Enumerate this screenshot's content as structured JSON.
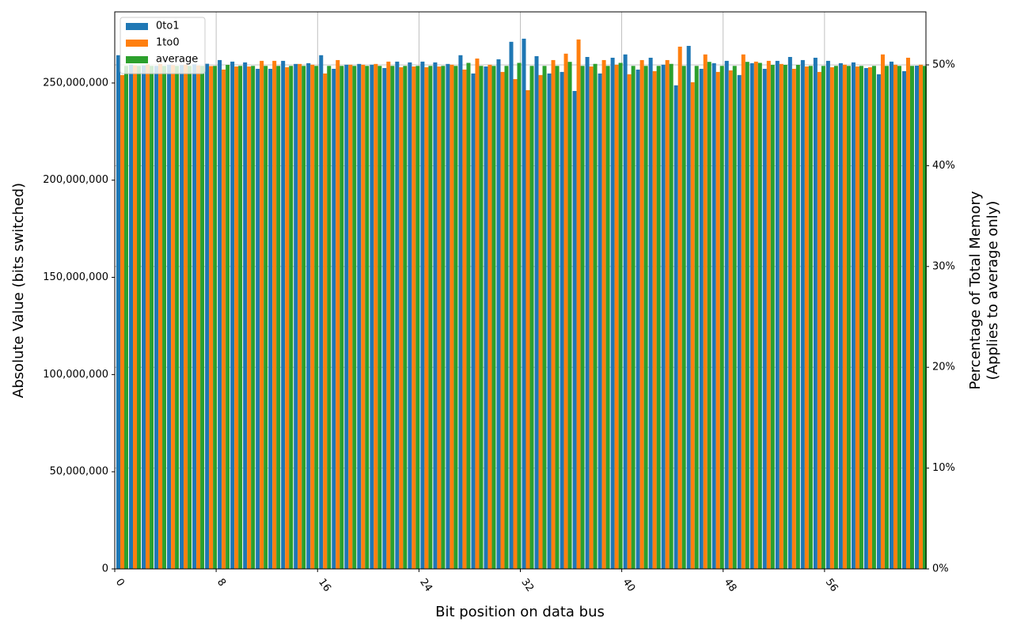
{
  "chart_data": {
    "type": "bar",
    "x_label": "Bit position on data bus",
    "y_label": "Absolute Value (bits switched)",
    "y2_label": [
      "Percentage of Total Memory",
      "(Applies to average only)"
    ],
    "categories": [
      "0",
      null,
      null,
      null,
      null,
      null,
      null,
      null,
      "8",
      null,
      null,
      null,
      null,
      null,
      null,
      null,
      "16",
      null,
      null,
      null,
      null,
      null,
      null,
      null,
      "24",
      null,
      null,
      null,
      null,
      null,
      null,
      null,
      "32",
      null,
      null,
      null,
      null,
      null,
      null,
      null,
      "40",
      null,
      null,
      null,
      null,
      null,
      null,
      null,
      "48",
      null,
      null,
      null,
      null,
      null,
      null,
      null,
      "56",
      null,
      null,
      null,
      null,
      null,
      null,
      null
    ],
    "series": [
      {
        "name": "0to1",
        "color": "#1f77b4",
        "values": [
          264300000,
          259500000,
          259000000,
          258800000,
          259400000,
          259200000,
          259600000,
          259900000,
          261800000,
          261000000,
          260600000,
          257300000,
          257300000,
          261400000,
          259800000,
          260200000,
          264300000,
          257300000,
          259400000,
          259800000,
          259400000,
          257700000,
          261000000,
          260600000,
          261000000,
          260600000,
          259800000,
          264300000,
          254900000,
          258500000,
          262200000,
          271200000,
          272800000,
          263800000,
          254900000,
          255700000,
          245900000,
          263400000,
          254900000,
          263000000,
          264700000,
          256900000,
          263000000,
          259400000,
          248800000,
          269100000,
          257300000,
          260200000,
          261400000,
          254100000,
          260200000,
          257300000,
          261400000,
          263400000,
          261800000,
          263000000,
          261400000,
          260200000,
          260600000,
          257700000,
          254500000,
          261000000,
          256100000,
          258900000
        ]
      },
      {
        "name": "1to0",
        "color": "#ff7f0e",
        "values": [
          254100000,
          259000000,
          259600000,
          259800000,
          259200000,
          259400000,
          259000000,
          258700000,
          256900000,
          258500000,
          258500000,
          261400000,
          261400000,
          258100000,
          259800000,
          259400000,
          254900000,
          261800000,
          259400000,
          259400000,
          259800000,
          261000000,
          258100000,
          258500000,
          258100000,
          258500000,
          259400000,
          256900000,
          262600000,
          259400000,
          255700000,
          252000000,
          246300000,
          254100000,
          261800000,
          265100000,
          272400000,
          258500000,
          261800000,
          259400000,
          254500000,
          261800000,
          256100000,
          261800000,
          268700000,
          250400000,
          264700000,
          255700000,
          256500000,
          264700000,
          261000000,
          261400000,
          259800000,
          257300000,
          258500000,
          255700000,
          258100000,
          259400000,
          258500000,
          258100000,
          264700000,
          259400000,
          263000000,
          259400000
        ]
      },
      {
        "name": "average",
        "color": "#2ca02c",
        "axis": "y2",
        "values": [
          49.9,
          49.9,
          49.9,
          49.9,
          49.9,
          49.9,
          49.9,
          49.9,
          50.0,
          49.9,
          49.9,
          49.9,
          49.9,
          49.9,
          49.9,
          49.9,
          49.9,
          49.9,
          49.9,
          49.9,
          49.9,
          49.9,
          49.9,
          49.9,
          49.9,
          49.9,
          49.9,
          50.2,
          49.9,
          49.9,
          49.9,
          50.2,
          49.9,
          49.9,
          49.9,
          50.3,
          49.9,
          50.1,
          49.9,
          50.2,
          49.9,
          49.9,
          49.9,
          50.1,
          49.9,
          49.9,
          50.3,
          49.9,
          49.9,
          50.3,
          50.2,
          50.0,
          50.0,
          50.0,
          49.9,
          49.9,
          49.9,
          49.9,
          49.9,
          49.9,
          49.9,
          49.9,
          49.9,
          49.9
        ]
      }
    ],
    "ylim": [
      0,
      286600000
    ],
    "yticks": [
      {
        "value": 0,
        "label": "0"
      },
      {
        "value": 50000000,
        "label": "50,000,000"
      },
      {
        "value": 100000000,
        "label": "100,000,000"
      },
      {
        "value": 150000000,
        "label": "150,000,000"
      },
      {
        "value": 200000000,
        "label": "200,000,000"
      },
      {
        "value": 250000000,
        "label": "250,000,000"
      }
    ],
    "y2lim": [
      0,
      55.26
    ],
    "y2ticks": [
      {
        "value": 0,
        "label": "0%"
      },
      {
        "value": 10,
        "label": "10%"
      },
      {
        "value": 20,
        "label": "20%"
      },
      {
        "value": 30,
        "label": "30%"
      },
      {
        "value": 40,
        "label": "40%"
      },
      {
        "value": 50,
        "label": "50%"
      }
    ],
    "grid": true,
    "legend": "upper left"
  }
}
